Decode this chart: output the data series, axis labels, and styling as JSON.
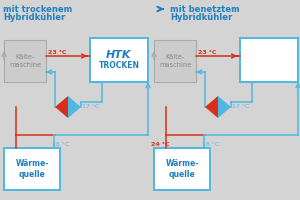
{
  "bg_color": "#d4d4d4",
  "blue_main": "#2080c0",
  "blue_light": "#50b8e0",
  "red_color": "#d83018",
  "gray_fc": "#cccccc",
  "gray_ec": "#aaaaaa",
  "white": "#ffffff",
  "left_title1": "mit trockenem",
  "left_title2": "Hybridkühler",
  "right_title1": "mit benetztem",
  "right_title2": "Hybridkühler",
  "kaelte": "Kälte-\nmaschine",
  "waerme": "Wärme-\nquelle",
  "htk1": "HTK",
  "htk2": "TROCKEN",
  "t23": "23 °C",
  "t17": "17 °C",
  "t18": "18 °C",
  "t24": "24 °C"
}
